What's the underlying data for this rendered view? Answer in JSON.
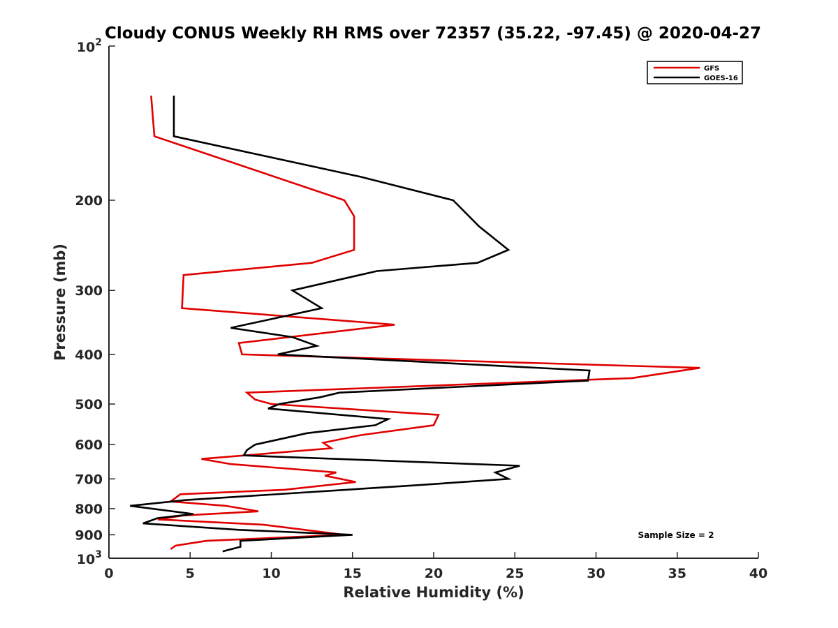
{
  "chart_data": {
    "type": "line",
    "title": "Cloudy CONUS Weekly RH RMS over 72357 (35.22, -97.45) @ 2020-04-27",
    "xlabel": "Relative Humidity (%)",
    "ylabel": "Pressure (mb)",
    "xlim": [
      0,
      40
    ],
    "ylim": [
      100,
      1000
    ],
    "y_scale": "log",
    "y_reversed": true,
    "grid": false,
    "legend_position": "top-right",
    "x_ticks": [
      0,
      5,
      10,
      15,
      20,
      25,
      30,
      35,
      40
    ],
    "x_tick_labels": [
      "0",
      "5",
      "10",
      "15",
      "20",
      "25",
      "30",
      "35",
      "40"
    ],
    "y_ticks": [
      200,
      300,
      400,
      500,
      600,
      700,
      800,
      900
    ],
    "y_tick_labels": [
      "200",
      "300",
      "400",
      "500",
      "600",
      "700",
      "800",
      "900"
    ],
    "y_edge_labels": [
      {
        "value": 100,
        "base": "10",
        "exp": "2"
      },
      {
        "value": 1000,
        "base": "10",
        "exp": "3"
      }
    ],
    "annotation": "Sample Size = 2",
    "series": [
      {
        "name": "GFS",
        "color": "#e00000",
        "points": [
          [
            2.6,
            125
          ],
          [
            2.8,
            150
          ],
          [
            14.5,
            200
          ],
          [
            15.1,
            215
          ],
          [
            15.1,
            250
          ],
          [
            12.5,
            265
          ],
          [
            4.6,
            280
          ],
          [
            4.5,
            325
          ],
          [
            17.6,
            350
          ],
          [
            8.0,
            380
          ],
          [
            8.2,
            400
          ],
          [
            36.4,
            425
          ],
          [
            32.2,
            445
          ],
          [
            8.5,
            475
          ],
          [
            9.0,
            490
          ],
          [
            10.0,
            500
          ],
          [
            20.3,
            525
          ],
          [
            20.0,
            550
          ],
          [
            15.5,
            575
          ],
          [
            13.2,
            595
          ],
          [
            13.7,
            610
          ],
          [
            5.7,
            640
          ],
          [
            7.5,
            655
          ],
          [
            14.0,
            680
          ],
          [
            13.3,
            690
          ],
          [
            15.2,
            710
          ],
          [
            10.8,
            735
          ],
          [
            4.4,
            750
          ],
          [
            3.8,
            775
          ],
          [
            7.2,
            790
          ],
          [
            9.2,
            810
          ],
          [
            4.6,
            825
          ],
          [
            3.0,
            840
          ],
          [
            9.5,
            860
          ],
          [
            14.5,
            900
          ],
          [
            6.0,
            925
          ],
          [
            4.1,
            945
          ],
          [
            3.8,
            960
          ]
        ]
      },
      {
        "name": "GOES-16",
        "color": "#000000",
        "points": [
          [
            4.0,
            125
          ],
          [
            4.0,
            150
          ],
          [
            15.5,
            180
          ],
          [
            21.2,
            200
          ],
          [
            22.8,
            225
          ],
          [
            24.6,
            250
          ],
          [
            22.7,
            265
          ],
          [
            16.5,
            275
          ],
          [
            11.3,
            300
          ],
          [
            13.1,
            325
          ],
          [
            7.5,
            355
          ],
          [
            11.3,
            370
          ],
          [
            12.8,
            385
          ],
          [
            10.4,
            400
          ],
          [
            29.6,
            430
          ],
          [
            29.5,
            450
          ],
          [
            14.2,
            475
          ],
          [
            13.0,
            485
          ],
          [
            10.5,
            500
          ],
          [
            9.8,
            510
          ],
          [
            17.2,
            535
          ],
          [
            16.4,
            550
          ],
          [
            12.2,
            570
          ],
          [
            9.0,
            600
          ],
          [
            8.5,
            615
          ],
          [
            8.3,
            630
          ],
          [
            25.3,
            660
          ],
          [
            23.8,
            680
          ],
          [
            24.6,
            700
          ],
          [
            19.0,
            720
          ],
          [
            4.7,
            770
          ],
          [
            1.3,
            790
          ],
          [
            5.2,
            820
          ],
          [
            3.0,
            835
          ],
          [
            2.1,
            855
          ],
          [
            8.0,
            880
          ],
          [
            15.0,
            900
          ],
          [
            8.1,
            925
          ],
          [
            8.1,
            950
          ],
          [
            7.0,
            970
          ]
        ]
      }
    ]
  }
}
